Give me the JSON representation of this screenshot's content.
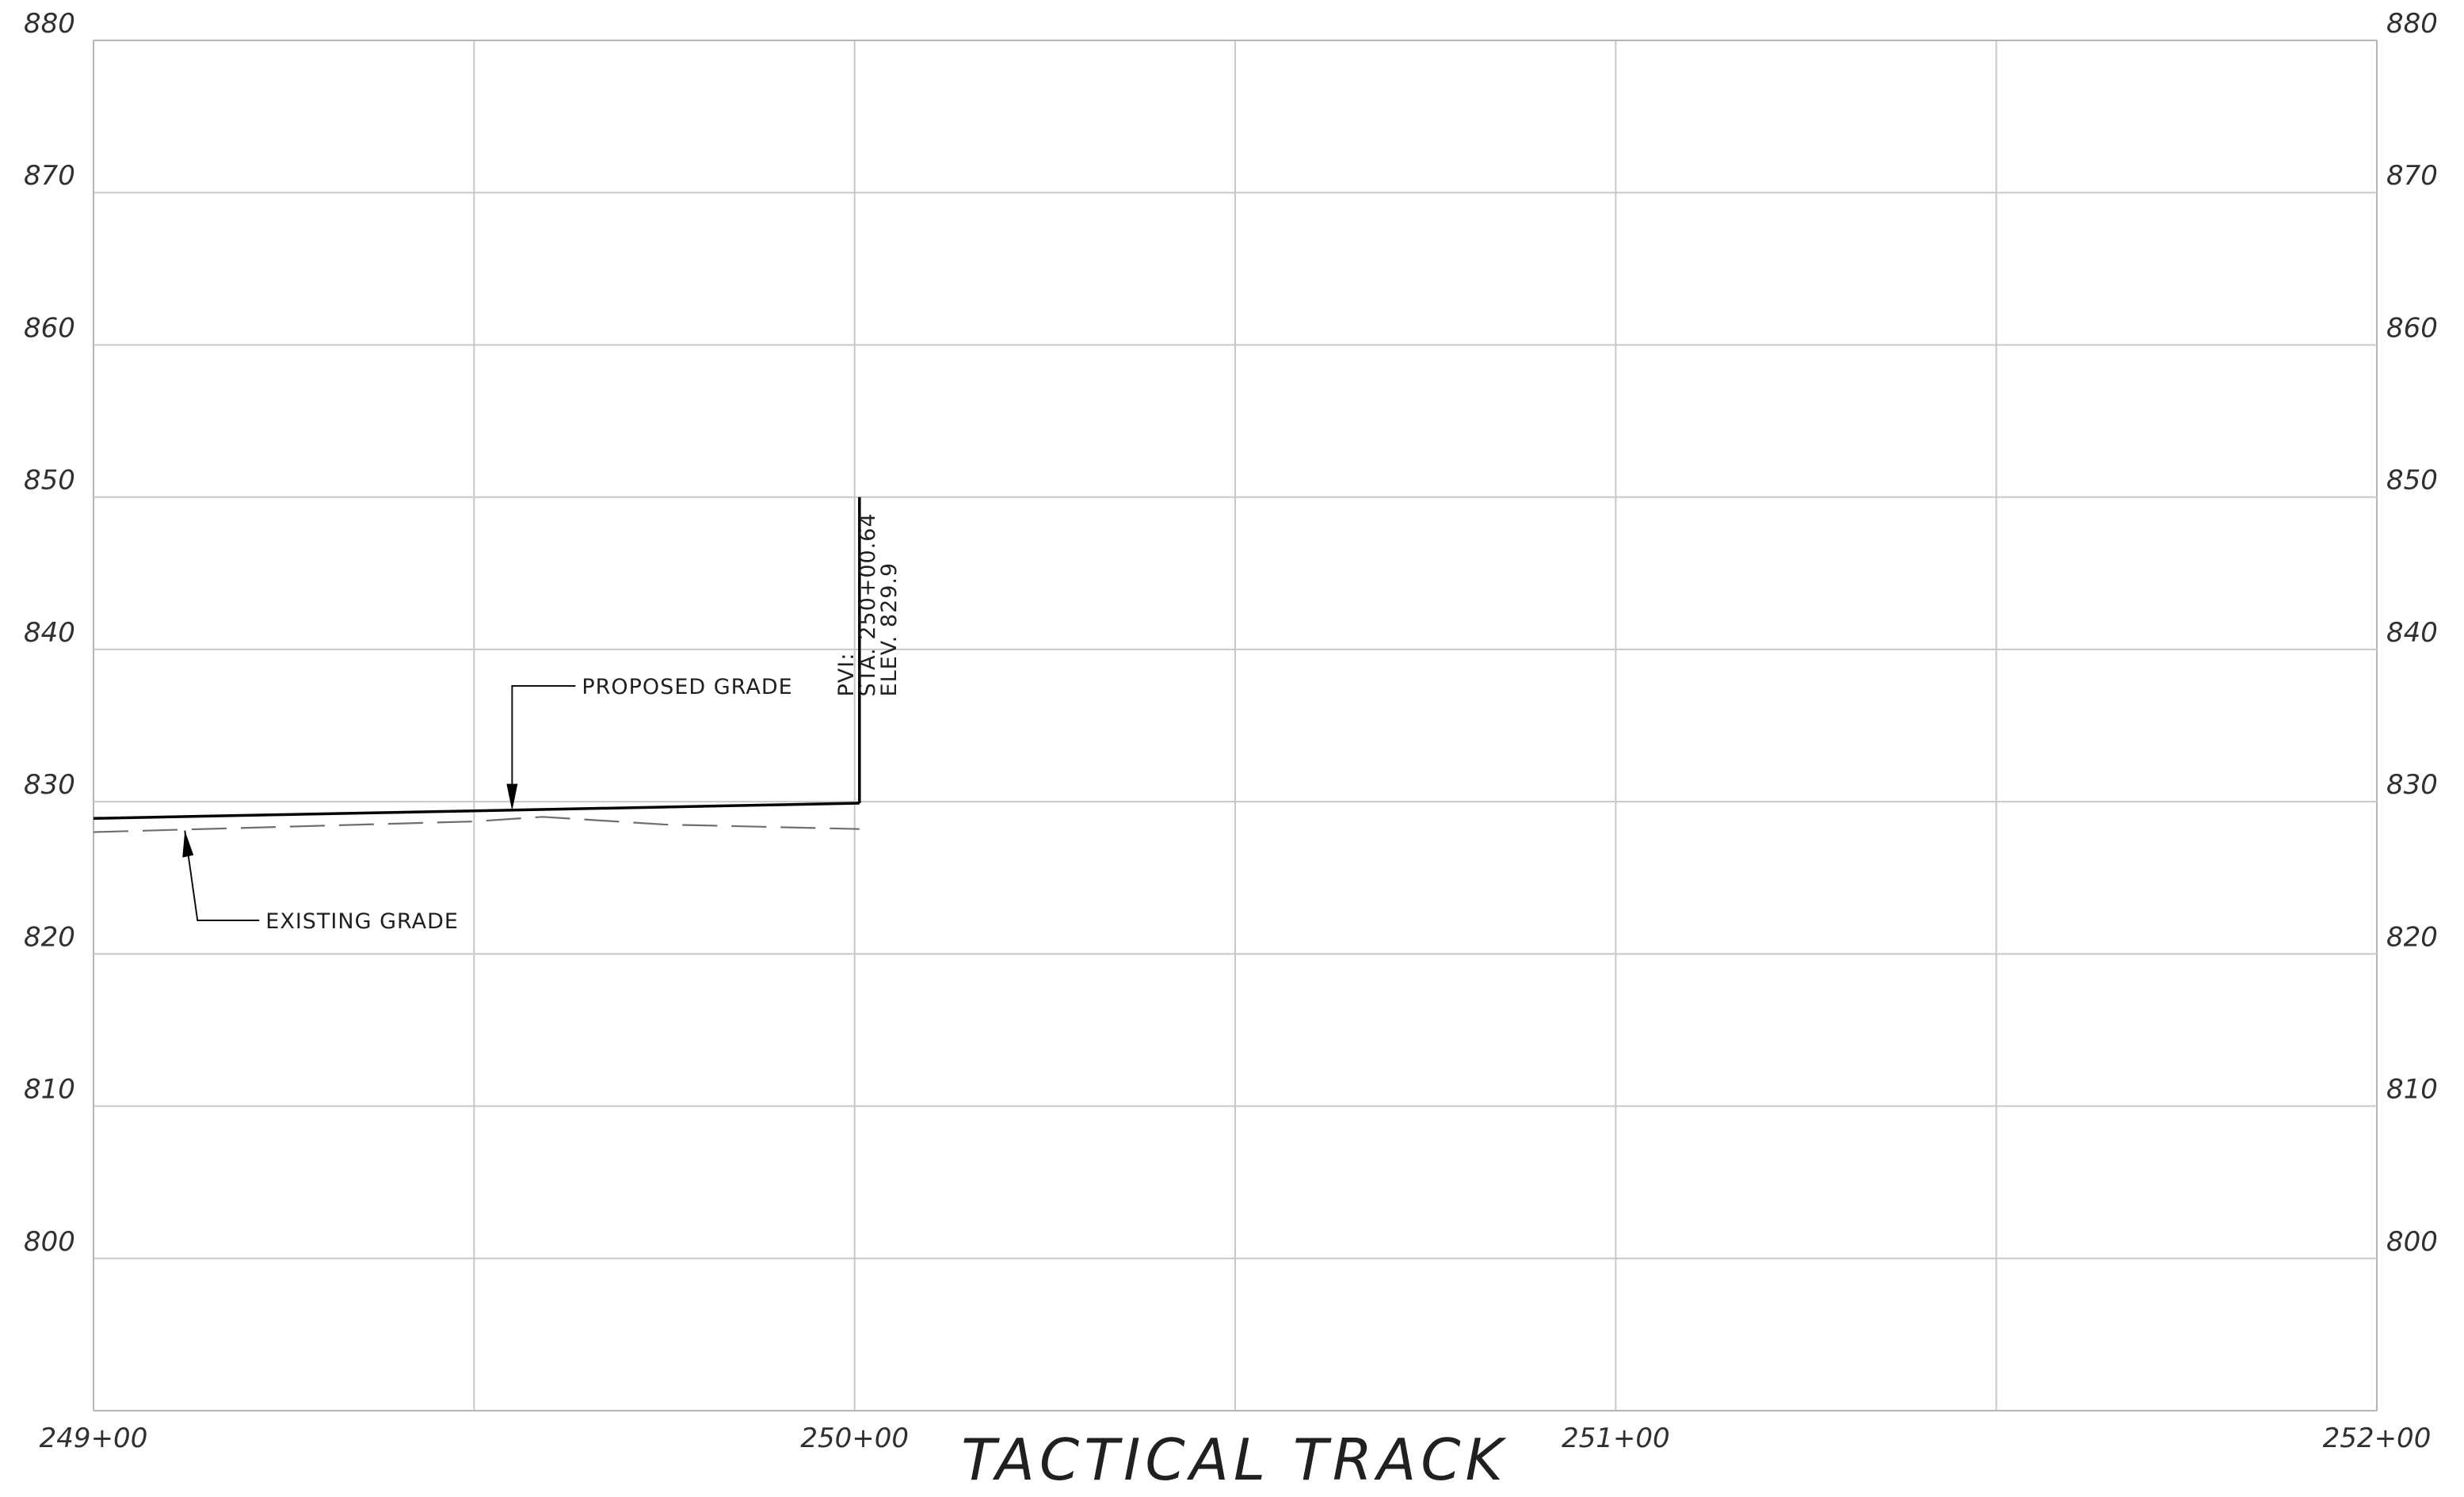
{
  "chart_data": {
    "type": "line",
    "title": "TACTICAL TRACK",
    "xlabel": "",
    "ylabel": "",
    "xlim": [
      24900,
      25200
    ],
    "ylim": [
      790,
      880
    ],
    "x_grid_step": 50,
    "y_grid_step": 10,
    "grid": true,
    "x_tick_values": [
      24900,
      25000,
      25100,
      25200
    ],
    "x_tick_labels": [
      "249+00",
      "250+00",
      "251+00",
      "252+00"
    ],
    "y_tick_values": [
      880,
      870,
      860,
      850,
      840,
      830,
      820,
      810,
      800
    ],
    "y_tick_labels": [
      "880",
      "870",
      "860",
      "850",
      "840",
      "830",
      "820",
      "810",
      "800"
    ],
    "series": [
      {
        "name": "PROPOSED GRADE",
        "style": "solid",
        "color": "#000000",
        "x": [
          24900,
          25000.64
        ],
        "y": [
          828.9,
          829.9
        ]
      },
      {
        "name": "EXISTING GRADE",
        "style": "dashed",
        "color": "#6e6e6e",
        "x": [
          24900,
          24950,
          24959,
          24975,
          25000.64
        ],
        "y": [
          828.0,
          828.7,
          829.0,
          828.5,
          828.2
        ]
      }
    ],
    "annotations": {
      "proposed_grade": {
        "text": "PROPOSED GRADE",
        "x": 24955,
        "y": 829.4
      },
      "existing_grade": {
        "text": "EXISTING GRADE",
        "x": 24912,
        "y": 828.1
      },
      "pvi": {
        "x": 25000.64,
        "y_from": 829.9,
        "y_to": 850,
        "label": "PVI:",
        "station_text": "STA. 250+00.64",
        "elevation_text": "ELEV. 829.9"
      }
    }
  }
}
